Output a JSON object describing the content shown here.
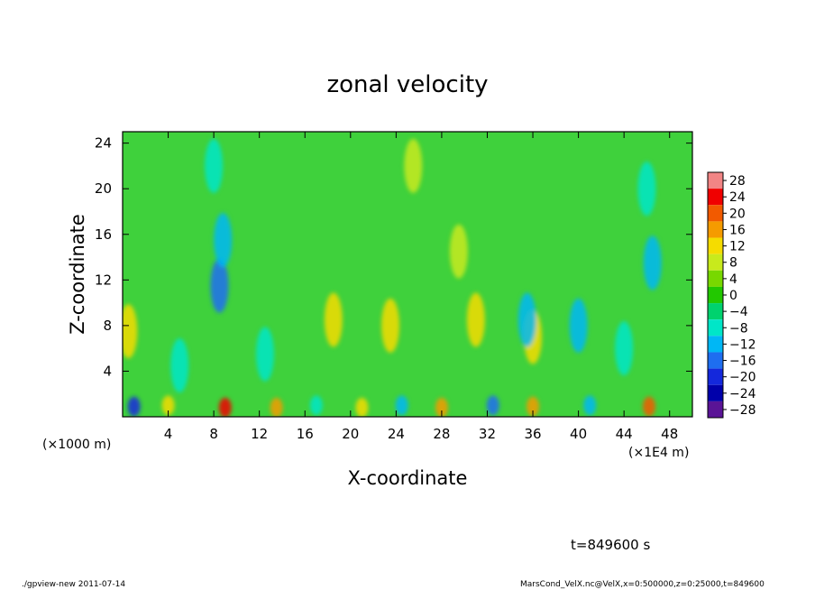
{
  "chart_data": {
    "type": "heatmap",
    "title": "zonal velocity",
    "xlabel": "X-coordinate",
    "ylabel": "Z-coordinate",
    "x_unit_left": "(×1000 m)",
    "x_unit_right": "(×1E4 m)",
    "xlim": [
      0,
      50
    ],
    "ylim": [
      0,
      25
    ],
    "x_ticks": [
      4,
      8,
      12,
      16,
      20,
      24,
      28,
      32,
      36,
      40,
      44,
      48
    ],
    "y_ticks": [
      4,
      8,
      12,
      16,
      20,
      24
    ],
    "colorbar_levels": [
      28,
      24,
      20,
      16,
      12,
      8,
      4,
      0,
      -4,
      -8,
      -12,
      -16,
      -20,
      -24,
      -28
    ],
    "colorbar_colors": [
      "#f28585",
      "#f00000",
      "#f25a00",
      "#f59b00",
      "#f5dc00",
      "#c8ea1c",
      "#78d800",
      "#22c800",
      "#00d26e",
      "#00e6c8",
      "#00b7f5",
      "#1e6ef0",
      "#1428dc",
      "#0000aa",
      "#5a1496"
    ],
    "field_base_color": "#3fd13c",
    "time_label": "t=849600 s",
    "hotspots": [
      {
        "x": 9.0,
        "z": 0.8,
        "v": 22
      },
      {
        "x": 46.2,
        "z": 0.9,
        "v": 20
      },
      {
        "x": 1.0,
        "z": 0.9,
        "v": -22
      },
      {
        "x": 32.5,
        "z": 1.0,
        "v": -18
      },
      {
        "x": 8.5,
        "z": 11.5,
        "v": -17
      },
      {
        "x": 8.8,
        "z": 15.5,
        "v": -12
      },
      {
        "x": 46.5,
        "z": 13.5,
        "v": -14
      },
      {
        "x": 46.0,
        "z": 20.0,
        "v": -10
      },
      {
        "x": 8.0,
        "z": 22.0,
        "v": -9
      },
      {
        "x": 25.5,
        "z": 22.0,
        "v": 8
      },
      {
        "x": 29.5,
        "z": 14.5,
        "v": 8
      },
      {
        "x": 0.5,
        "z": 7.5,
        "v": 12
      },
      {
        "x": 18.5,
        "z": 8.5,
        "v": 12
      },
      {
        "x": 23.5,
        "z": 8.0,
        "v": 11
      },
      {
        "x": 31.0,
        "z": 8.5,
        "v": 11
      },
      {
        "x": 36.0,
        "z": 7.0,
        "v": 10
      },
      {
        "x": 40.0,
        "z": 8.0,
        "v": -12
      },
      {
        "x": 35.5,
        "z": 8.5,
        "v": -11
      },
      {
        "x": 44.0,
        "z": 6.0,
        "v": -9
      },
      {
        "x": 13.5,
        "z": 0.8,
        "v": 14
      },
      {
        "x": 28.0,
        "z": 0.8,
        "v": 14
      },
      {
        "x": 36.0,
        "z": 0.9,
        "v": 14
      },
      {
        "x": 21.0,
        "z": 0.8,
        "v": 12
      },
      {
        "x": 24.5,
        "z": 1.0,
        "v": -12
      },
      {
        "x": 17.0,
        "z": 1.0,
        "v": -10
      },
      {
        "x": 41.0,
        "z": 1.0,
        "v": -12
      },
      {
        "x": 4.0,
        "z": 1.0,
        "v": 10
      },
      {
        "x": 12.5,
        "z": 5.5,
        "v": -10
      },
      {
        "x": 5.0,
        "z": 4.5,
        "v": -8
      }
    ]
  },
  "footer": {
    "left": "./gpview-new  2011-07-14",
    "right": "MarsCond_VelX.nc@VelX,x=0:500000,z=0:25000,t=849600"
  }
}
